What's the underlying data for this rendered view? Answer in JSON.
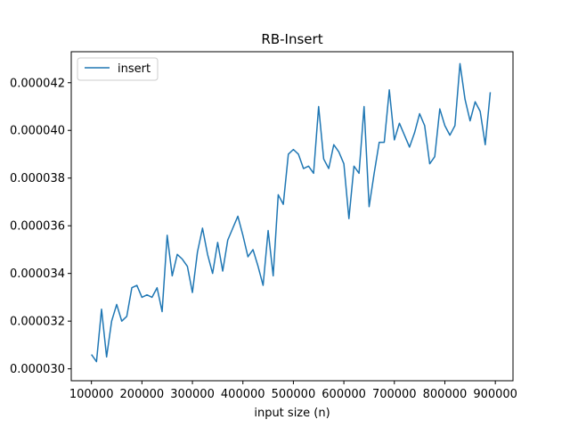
{
  "chart_data": {
    "type": "line",
    "title": "RB-Insert",
    "xlabel": "input size (n)",
    "ylabel": "",
    "xlim": [
      60000,
      935000
    ],
    "ylim": [
      2.95e-05,
      4.33e-05
    ],
    "xticks": [
      100000,
      200000,
      300000,
      400000,
      500000,
      600000,
      700000,
      800000,
      900000
    ],
    "xtick_labels": [
      "100000",
      "200000",
      "300000",
      "400000",
      "500000",
      "600000",
      "700000",
      "800000",
      "900000"
    ],
    "yticks": [
      3e-05,
      3.2e-05,
      3.4e-05,
      3.6e-05,
      3.8e-05,
      4e-05,
      4.2e-05
    ],
    "ytick_labels": [
      "0.000030",
      "0.000032",
      "0.000034",
      "0.000036",
      "0.000038",
      "0.000040",
      "0.000042"
    ],
    "legend_position": "top-left",
    "grid": false,
    "series": [
      {
        "name": "insert",
        "color": "#1f77b4",
        "x": [
          100000,
          110000,
          120000,
          130000,
          140000,
          150000,
          160000,
          170000,
          180000,
          190000,
          200000,
          210000,
          220000,
          230000,
          240000,
          250000,
          260000,
          270000,
          280000,
          290000,
          300000,
          310000,
          320000,
          330000,
          340000,
          350000,
          360000,
          370000,
          380000,
          390000,
          400000,
          410000,
          420000,
          430000,
          440000,
          450000,
          460000,
          470000,
          480000,
          490000,
          500000,
          510000,
          520000,
          530000,
          540000,
          550000,
          560000,
          570000,
          580000,
          590000,
          600000,
          610000,
          620000,
          630000,
          640000,
          650000,
          660000,
          670000,
          680000,
          690000,
          700000,
          710000,
          720000,
          730000,
          740000,
          750000,
          760000,
          770000,
          780000,
          790000,
          800000,
          810000,
          820000,
          830000,
          840000,
          850000,
          860000,
          870000,
          880000,
          890000
        ],
        "y": [
          3.06e-05,
          3.03e-05,
          3.25e-05,
          3.05e-05,
          3.2e-05,
          3.27e-05,
          3.2e-05,
          3.22e-05,
          3.34e-05,
          3.35e-05,
          3.3e-05,
          3.31e-05,
          3.3e-05,
          3.34e-05,
          3.24e-05,
          3.56e-05,
          3.39e-05,
          3.48e-05,
          3.46e-05,
          3.43e-05,
          3.32e-05,
          3.49e-05,
          3.59e-05,
          3.48e-05,
          3.4e-05,
          3.53e-05,
          3.41e-05,
          3.54e-05,
          3.59e-05,
          3.64e-05,
          3.56e-05,
          3.47e-05,
          3.5e-05,
          3.43e-05,
          3.35e-05,
          3.58e-05,
          3.39e-05,
          3.73e-05,
          3.69e-05,
          3.9e-05,
          3.92e-05,
          3.9e-05,
          3.84e-05,
          3.85e-05,
          3.82e-05,
          4.1e-05,
          3.88e-05,
          3.84e-05,
          3.94e-05,
          3.91e-05,
          3.86e-05,
          3.63e-05,
          3.85e-05,
          3.82e-05,
          4.1e-05,
          3.68e-05,
          3.82e-05,
          3.95e-05,
          3.95e-05,
          4.17e-05,
          3.96e-05,
          4.03e-05,
          3.98e-05,
          3.93e-05,
          3.99e-05,
          4.07e-05,
          4.02e-05,
          3.86e-05,
          3.89e-05,
          4.09e-05,
          4.02e-05,
          3.98e-05,
          4.02e-05,
          4.28e-05,
          4.13e-05,
          4.04e-05,
          4.12e-05,
          4.08e-05,
          3.94e-05,
          4.16e-05
        ]
      }
    ]
  }
}
